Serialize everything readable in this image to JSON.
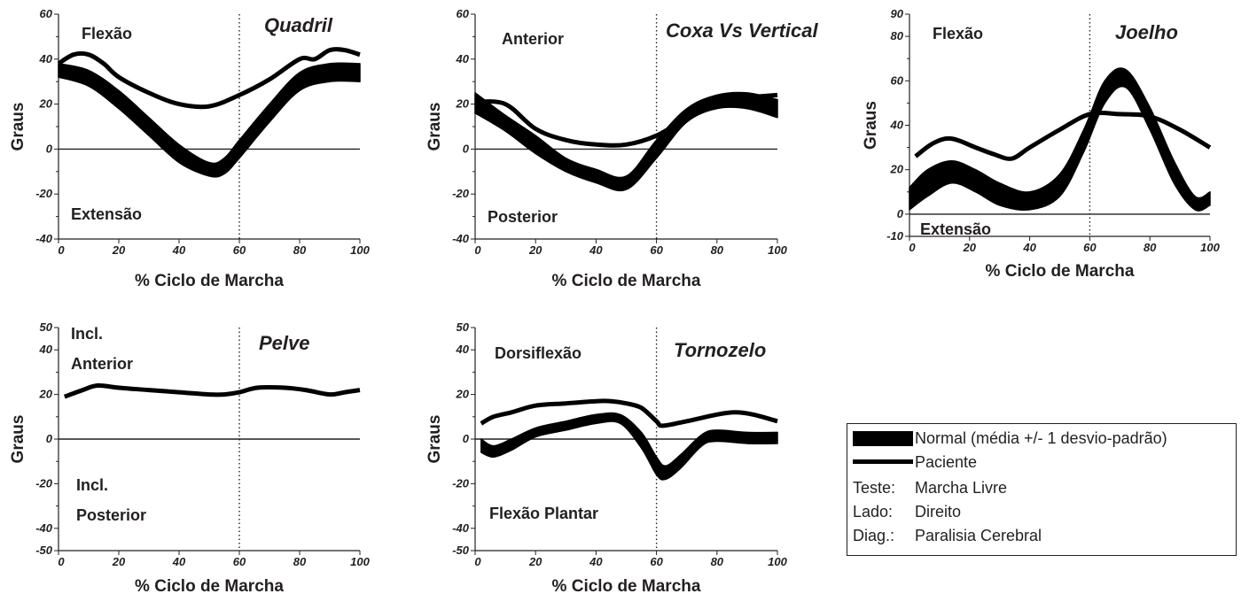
{
  "chart_data": [
    {
      "type": "line",
      "title": "Quadril",
      "xlabel": "% Ciclo de Marcha",
      "ylabel": "Graus",
      "upper_region_label": "Flexão",
      "lower_region_label": "Extensão",
      "xlim": [
        0,
        100
      ],
      "ylim": [
        -40,
        60
      ],
      "xticks": [
        0,
        20,
        40,
        60,
        80,
        100
      ],
      "yticks": [
        -40,
        -20,
        0,
        20,
        40,
        60
      ],
      "toe_off_percent": 60,
      "normal_band": {
        "x": [
          0,
          10,
          20,
          30,
          40,
          50,
          55,
          60,
          70,
          80,
          90,
          100
        ],
        "lower": [
          32,
          28,
          18,
          6,
          -6,
          -12,
          -11,
          -4,
          12,
          26,
          30,
          30
        ],
        "upper": [
          38,
          35,
          26,
          14,
          2,
          -6,
          -4,
          4,
          20,
          34,
          38,
          38
        ]
      },
      "series": [
        {
          "name": "Paciente",
          "x": [
            0,
            5,
            10,
            15,
            20,
            30,
            40,
            50,
            60,
            70,
            80,
            85,
            90,
            95,
            100
          ],
          "y": [
            38,
            42,
            42,
            38,
            32,
            25,
            20,
            19,
            24,
            31,
            40,
            40,
            44,
            44,
            42
          ]
        }
      ]
    },
    {
      "type": "line",
      "title": "Coxa Vs Vertical",
      "xlabel": "% Ciclo de Marcha",
      "ylabel": "Graus",
      "upper_region_label": "Anterior",
      "lower_region_label": "Posterior",
      "xlim": [
        0,
        100
      ],
      "ylim": [
        -40,
        60
      ],
      "xticks": [
        0,
        20,
        40,
        60,
        80,
        100
      ],
      "yticks": [
        -40,
        -20,
        0,
        20,
        40,
        60
      ],
      "toe_off_percent": 60,
      "normal_band": {
        "x": [
          0,
          10,
          20,
          30,
          40,
          50,
          60,
          70,
          80,
          90,
          100
        ],
        "lower": [
          16,
          8,
          -2,
          -10,
          -15,
          -18,
          -4,
          12,
          18,
          18,
          14
        ],
        "upper": [
          25,
          15,
          6,
          -4,
          -9,
          -12,
          4,
          18,
          24,
          25,
          22
        ]
      },
      "series": [
        {
          "name": "Paciente",
          "x": [
            0,
            10,
            20,
            30,
            40,
            50,
            60,
            70,
            80,
            90,
            100
          ],
          "y": [
            21,
            20,
            9,
            4,
            2,
            2,
            6,
            14,
            22,
            23,
            24
          ]
        }
      ]
    },
    {
      "type": "line",
      "title": "Joelho",
      "xlabel": "% Ciclo de Marcha",
      "ylabel": "Graus",
      "upper_region_label": "Flexão",
      "lower_region_label": "Extensão",
      "xlim": [
        0,
        100
      ],
      "ylim": [
        -10,
        90
      ],
      "xticks": [
        0,
        20,
        40,
        60,
        80,
        100
      ],
      "yticks": [
        -10,
        0,
        20,
        40,
        60,
        80,
        90
      ],
      "toe_off_percent": 60,
      "normal_band": {
        "x": [
          0,
          6,
          14,
          22,
          30,
          40,
          50,
          58,
          65,
          72,
          80,
          88,
          95,
          100
        ],
        "lower": [
          2,
          8,
          14,
          10,
          4,
          2,
          8,
          28,
          50,
          57,
          38,
          14,
          2,
          4
        ],
        "upper": [
          12,
          20,
          24,
          20,
          14,
          10,
          18,
          38,
          60,
          65,
          48,
          24,
          8,
          10
        ]
      },
      "series": [
        {
          "name": "Paciente",
          "x": [
            2,
            8,
            14,
            22,
            28,
            34,
            40,
            50,
            60,
            70,
            80,
            90,
            100
          ],
          "y": [
            26,
            32,
            34,
            30,
            27,
            25,
            30,
            38,
            45,
            45,
            44,
            38,
            30
          ]
        }
      ]
    },
    {
      "type": "line",
      "title": "Pelve",
      "xlabel": "% Ciclo de Marcha",
      "ylabel": "Graus",
      "upper_region_label": "Incl.\nAnterior",
      "lower_region_label": "Incl.\nPosterior",
      "xlim": [
        0,
        100
      ],
      "ylim": [
        -50,
        50
      ],
      "xticks": [
        0,
        20,
        40,
        60,
        80,
        100
      ],
      "yticks": [
        -50,
        -40,
        -20,
        0,
        20,
        40,
        50
      ],
      "toe_off_percent": 60,
      "series": [
        {
          "name": "Paciente",
          "x": [
            2,
            8,
            13,
            20,
            30,
            40,
            50,
            55,
            60,
            66,
            75,
            82,
            90,
            95,
            100
          ],
          "y": [
            19,
            22,
            24,
            23,
            22,
            21,
            20,
            20,
            21,
            23,
            23,
            22,
            20,
            21,
            22
          ]
        }
      ]
    },
    {
      "type": "line",
      "title": "Tornozelo",
      "xlabel": "% Ciclo de Marcha",
      "ylabel": "Graus",
      "upper_region_label": "Dorsiflexão",
      "lower_region_label": "Flexão Plantar",
      "xlim": [
        0,
        100
      ],
      "ylim": [
        -50,
        50
      ],
      "xticks": [
        0,
        20,
        40,
        60,
        80,
        100
      ],
      "yticks": [
        -50,
        -40,
        -20,
        0,
        20,
        40,
        50
      ],
      "toe_off_percent": 60,
      "normal_band": {
        "x": [
          2,
          6,
          12,
          20,
          30,
          40,
          48,
          55,
          60,
          63,
          68,
          75,
          80,
          90,
          100
        ],
        "lower": [
          -6,
          -8,
          -5,
          1,
          4,
          7,
          7,
          -4,
          -16,
          -18,
          -13,
          -3,
          -1,
          -2,
          -2
        ],
        "upper": [
          0,
          -3,
          0,
          5,
          8,
          11,
          11,
          3,
          -8,
          -12,
          -7,
          2,
          4,
          3,
          3
        ]
      },
      "series": [
        {
          "name": "Paciente",
          "x": [
            2,
            6,
            12,
            20,
            30,
            40,
            45,
            50,
            55,
            60,
            62,
            70,
            80,
            86,
            92,
            100
          ],
          "y": [
            7,
            10,
            12,
            15,
            16,
            17,
            17,
            16,
            14,
            8,
            6,
            8,
            11,
            12,
            11,
            8
          ]
        }
      ]
    }
  ],
  "legend": {
    "normal_label": "Normal (média +/- 1 desvio-padrão)",
    "patient_label": "Paciente",
    "rows": [
      {
        "key": "Teste:",
        "value": "Marcha Livre"
      },
      {
        "key": "Lado:",
        "value": "Direito"
      },
      {
        "key": "Diag.:",
        "value": "Paralisia Cerebral"
      }
    ]
  },
  "colors": {
    "ink": "#231f20",
    "band": "#000000",
    "background": "#ffffff"
  }
}
